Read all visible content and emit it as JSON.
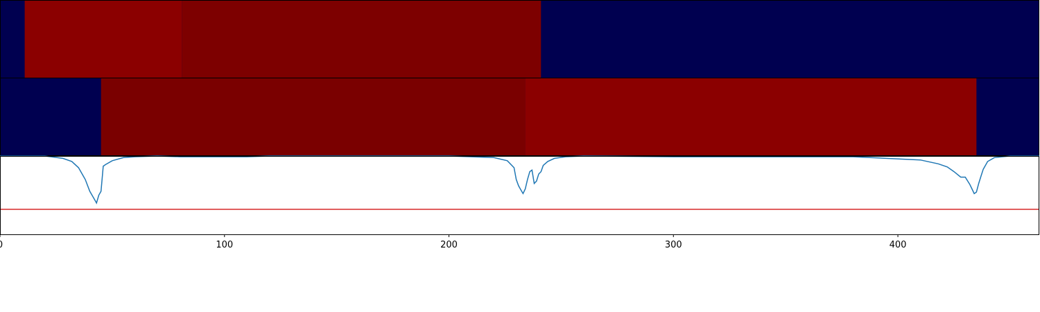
{
  "chart_data": {
    "type": "heatmap",
    "title": "",
    "xlabel": "",
    "ylabel": "",
    "xlim": [
      0,
      463
    ],
    "xticks": [
      0,
      100,
      200,
      300,
      400
    ],
    "grid": false,
    "colors": {
      "background": "#000050",
      "red_a": "#8b0000",
      "red_b": "#7d0000",
      "red_c": "#7a0000",
      "signal_line": "#1f77b4",
      "threshold_line": "#d62728"
    },
    "tracks": [
      {
        "name": "",
        "segments": [
          {
            "start": 11,
            "end": 81,
            "color": "#8b0000"
          },
          {
            "start": 81,
            "end": 241,
            "color": "#7d0000"
          }
        ]
      },
      {
        "name": "",
        "segments": [
          {
            "start": 45,
            "end": 234,
            "color": "#7a0000"
          },
          {
            "start": 234,
            "end": 435,
            "color": "#8b0000"
          }
        ]
      }
    ],
    "signal": {
      "ylim": [
        -1.0,
        0.0
      ],
      "threshold": -0.68,
      "x": [
        0,
        20,
        28,
        32,
        35,
        38,
        40,
        42,
        43,
        44,
        45,
        46,
        47,
        50,
        55,
        60,
        70,
        80,
        90,
        100,
        110,
        120,
        150,
        200,
        220,
        226,
        229,
        230,
        231,
        232,
        233,
        234,
        235,
        236,
        237,
        238,
        239,
        240,
        241,
        242,
        244,
        247,
        252,
        260,
        300,
        340,
        380,
        410,
        418,
        422,
        425,
        428,
        430,
        432,
        433,
        434,
        435,
        436,
        437,
        438,
        440,
        443,
        450,
        463
      ],
      "y": [
        0.0,
        0.0,
        -0.03,
        -0.07,
        -0.15,
        -0.3,
        -0.45,
        -0.55,
        -0.6,
        -0.5,
        -0.45,
        -0.13,
        -0.11,
        -0.06,
        -0.02,
        -0.01,
        0.0,
        -0.01,
        -0.01,
        -0.01,
        -0.01,
        0.0,
        0.0,
        0.0,
        -0.02,
        -0.06,
        -0.15,
        -0.3,
        -0.38,
        -0.43,
        -0.48,
        -0.42,
        -0.3,
        -0.2,
        -0.18,
        -0.35,
        -0.32,
        -0.23,
        -0.2,
        -0.12,
        -0.07,
        -0.03,
        -0.01,
        0.0,
        -0.01,
        -0.01,
        -0.01,
        -0.05,
        -0.1,
        -0.14,
        -0.2,
        -0.27,
        -0.27,
        -0.36,
        -0.42,
        -0.48,
        -0.46,
        -0.35,
        -0.26,
        -0.17,
        -0.07,
        -0.02,
        0.0,
        0.0
      ]
    }
  }
}
